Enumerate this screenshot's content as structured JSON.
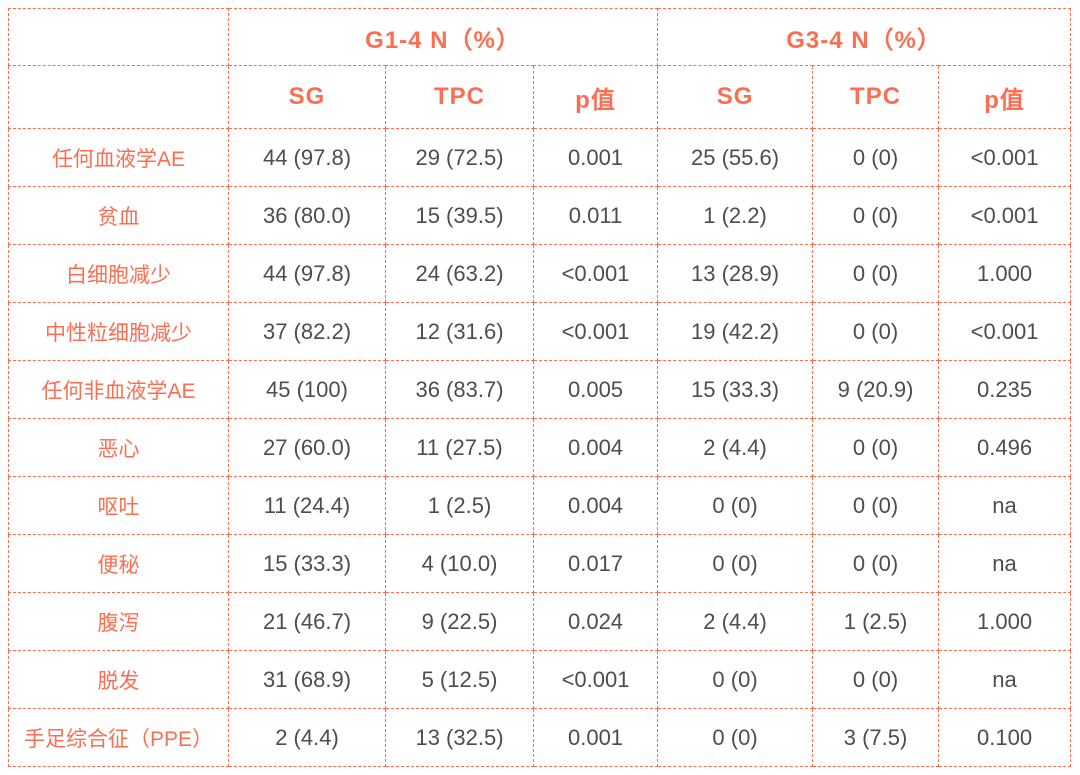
{
  "table": {
    "accent_color": "#fb6e51",
    "body_text_color": "#4d4d4d",
    "border_style": "dashed",
    "group_headers": [
      {
        "label": "G1-4 N（%）",
        "colspan": 3
      },
      {
        "label": "G3-4 N（%）",
        "colspan": 3
      }
    ],
    "sub_headers": [
      "SG",
      "TPC",
      "p值",
      "SG",
      "TPC",
      "p值"
    ],
    "rows": [
      {
        "label": "任何血液学AE",
        "cells": [
          "44 (97.8)",
          "29 (72.5)",
          "0.001",
          "25 (55.6)",
          "0 (0)",
          "<0.001"
        ]
      },
      {
        "label": "贫血",
        "cells": [
          "36 (80.0)",
          "15 (39.5)",
          "0.011",
          "1 (2.2)",
          "0 (0)",
          "<0.001"
        ]
      },
      {
        "label": "白细胞减少",
        "cells": [
          "44 (97.8)",
          "24 (63.2)",
          "<0.001",
          "13 (28.9)",
          "0 (0)",
          "1.000"
        ]
      },
      {
        "label": "中性粒细胞减少",
        "cells": [
          "37 (82.2)",
          "12 (31.6)",
          "<0.001",
          "19 (42.2)",
          "0 (0)",
          "<0.001"
        ]
      },
      {
        "label": "任何非血液学AE",
        "cells": [
          "45 (100)",
          "36 (83.7)",
          "0.005",
          "15 (33.3)",
          "9 (20.9)",
          "0.235"
        ]
      },
      {
        "label": "恶心",
        "cells": [
          "27 (60.0)",
          "11 (27.5)",
          "0.004",
          "2 (4.4)",
          "0 (0)",
          "0.496"
        ]
      },
      {
        "label": "呕吐",
        "cells": [
          "11 (24.4)",
          "1 (2.5)",
          "0.004",
          "0 (0)",
          "0 (0)",
          "na"
        ]
      },
      {
        "label": "便秘",
        "cells": [
          "15 (33.3)",
          "4 (10.0)",
          "0.017",
          "0 (0)",
          "0 (0)",
          "na"
        ]
      },
      {
        "label": "腹泻",
        "cells": [
          "21 (46.7)",
          "9 (22.5)",
          "0.024",
          "2 (4.4)",
          "1 (2.5)",
          "1.000"
        ]
      },
      {
        "label": "脱发",
        "cells": [
          "31 (68.9)",
          "5 (12.5)",
          "<0.001",
          "0 (0)",
          "0 (0)",
          "na"
        ]
      },
      {
        "label": "手足综合征（PPE）",
        "cells": [
          "2 (4.4)",
          "13 (32.5)",
          "0.001",
          "0 (0)",
          "3 (7.5)",
          "0.100"
        ]
      }
    ]
  }
}
